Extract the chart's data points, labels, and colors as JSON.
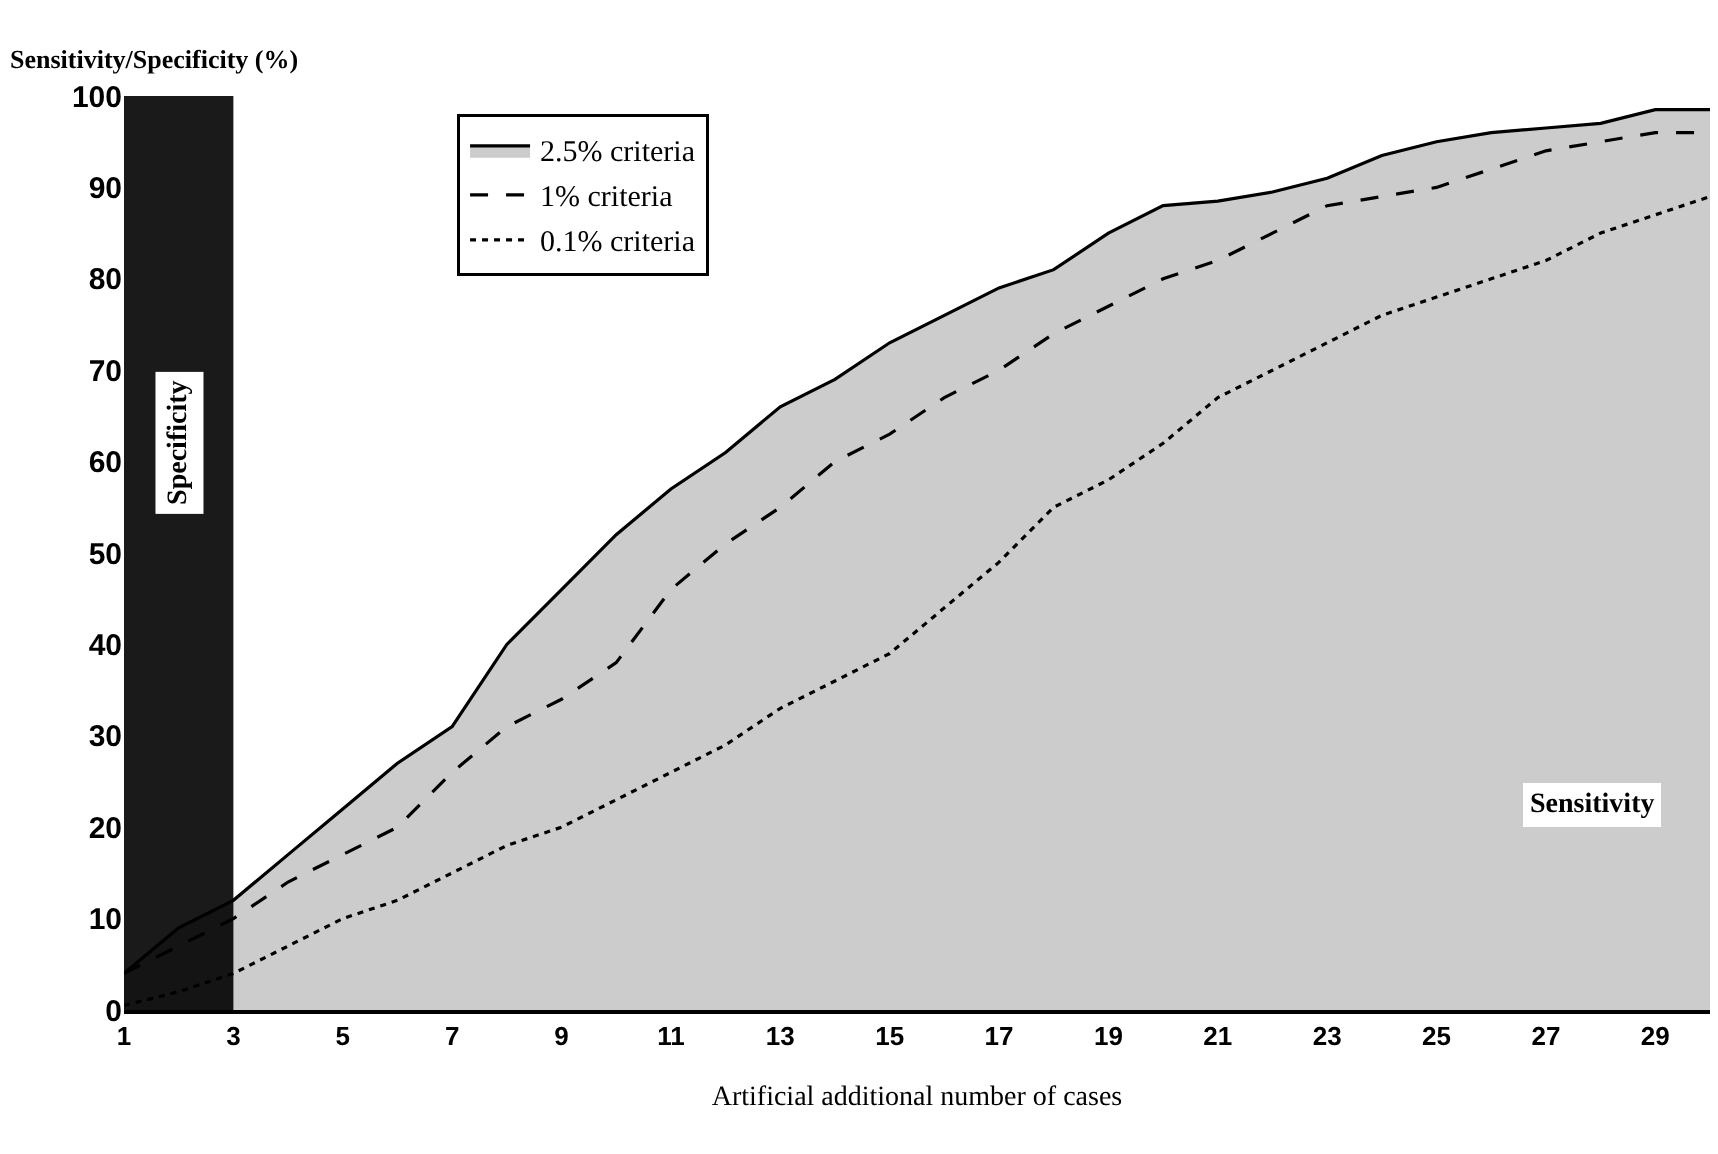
{
  "chart_data": {
    "type": "line",
    "ylabel": "Sensitivity/Specificity (%)",
    "xlabel": "Artificial additional number of cases",
    "x": [
      1,
      2,
      3,
      4,
      5,
      6,
      7,
      8,
      9,
      10,
      11,
      12,
      13,
      14,
      15,
      16,
      17,
      18,
      19,
      20,
      21,
      22,
      23,
      24,
      25,
      26,
      27,
      28,
      29,
      30
    ],
    "series": [
      {
        "name": "2.5% criteria",
        "type": "area",
        "color": "#000000",
        "line_style": "solid",
        "values": [
          4,
          9,
          12,
          17,
          22,
          27,
          31,
          40,
          46,
          52,
          57,
          61,
          66,
          69,
          73,
          76,
          79,
          81,
          85,
          88,
          88.5,
          89.5,
          91,
          93.5,
          95,
          96,
          96.5,
          97,
          98.5,
          98.5
        ]
      },
      {
        "name": "1% criteria",
        "type": "line",
        "color": "#000000",
        "line_style": "dashed",
        "values": [
          4,
          7,
          10,
          14,
          17,
          20,
          26,
          31,
          34,
          38,
          46,
          51,
          55,
          60,
          63,
          67,
          70,
          74,
          77,
          80,
          82,
          85,
          88,
          89,
          90,
          92,
          94,
          95,
          96,
          96
        ]
      },
      {
        "name": "0.1% criteria",
        "type": "line",
        "color": "#000000",
        "line_style": "dotted",
        "values": [
          0.5,
          2,
          4,
          7,
          10,
          12,
          15,
          18,
          20,
          23,
          26,
          29,
          33,
          36,
          39,
          44,
          49,
          55,
          58,
          62,
          67,
          70,
          73,
          76,
          78,
          80,
          82,
          85,
          87,
          89
        ]
      }
    ],
    "xlim": [
      1,
      30
    ],
    "xticks": [
      1,
      3,
      5,
      7,
      9,
      11,
      13,
      15,
      17,
      19,
      21,
      23,
      25,
      27,
      29
    ],
    "ylim": [
      0,
      100
    ],
    "yticks": [
      0,
      10,
      20,
      30,
      40,
      50,
      60,
      70,
      80,
      90,
      100
    ],
    "bands": [
      {
        "axis": "x",
        "from": 1,
        "to": 3,
        "label": "Specificity",
        "color": "#1a1a1a"
      }
    ],
    "annotations": [
      "Sensitivity"
    ],
    "grid": false,
    "legend": "top left",
    "marker": "none"
  }
}
